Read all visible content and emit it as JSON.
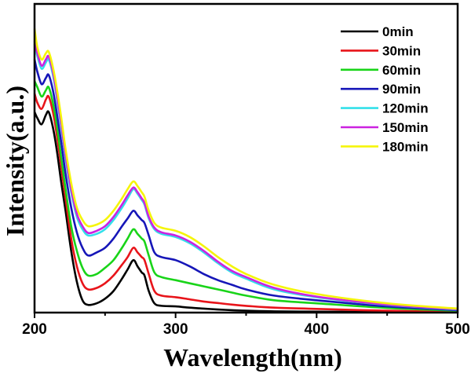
{
  "chart_data": {
    "type": "line",
    "title": "",
    "xlabel": "Wavelength(nm)",
    "ylabel": "Intensity(a.u.)",
    "xlim": [
      200,
      500
    ],
    "ylim": [
      0,
      100
    ],
    "xticks": [
      200,
      300,
      400,
      500
    ],
    "xtick_labels": [
      "200",
      "300",
      "400",
      "500"
    ],
    "yticks": [],
    "grid": false,
    "legend_position": "top-right",
    "x": [
      200,
      202,
      205,
      208,
      210,
      213,
      216,
      219,
      222,
      226,
      230,
      234,
      238,
      244,
      250,
      256,
      262,
      266,
      270,
      273,
      276,
      278,
      281,
      285,
      290,
      300,
      310,
      320,
      330,
      340,
      350,
      370,
      400,
      450,
      500
    ],
    "series": [
      {
        "name": "0min",
        "color": "#000000",
        "values": [
          65,
          63,
          61,
          64,
          65,
          60,
          52,
          42,
          33,
          20,
          10,
          4,
          2.5,
          3,
          4.5,
          7,
          11,
          14,
          17,
          15,
          13,
          12,
          7,
          3,
          2.2,
          2,
          1.6,
          1.3,
          1,
          0.8,
          0.6,
          0.4,
          0.3,
          0.2,
          0.1
        ]
      },
      {
        "name": "30min",
        "color": "#e8141a",
        "values": [
          71,
          68,
          66,
          69,
          70,
          65,
          57,
          47,
          37,
          24,
          15,
          9.5,
          7.5,
          8,
          9.5,
          12,
          15.5,
          18,
          21,
          19.5,
          18,
          17,
          12.5,
          7,
          5.5,
          5,
          4.3,
          3.6,
          3.1,
          2.6,
          2.2,
          1.6,
          1.2,
          0.6,
          0.3
        ]
      },
      {
        "name": "60min",
        "color": "#19d419",
        "values": [
          75,
          73,
          70,
          72,
          73,
          68,
          60,
          50,
          40,
          28,
          20,
          14.5,
          12,
          12.5,
          14.5,
          17,
          21,
          24,
          27,
          25.5,
          24,
          23,
          18.5,
          13,
          11.5,
          10.5,
          9.5,
          8.5,
          7.5,
          6.5,
          5.5,
          4,
          3,
          1.5,
          0.6
        ]
      },
      {
        "name": "90min",
        "color": "#1616b8",
        "values": [
          82,
          78,
          74,
          76,
          77,
          72,
          64,
          55,
          45,
          34,
          26,
          21,
          18.5,
          19.5,
          21,
          24,
          28,
          30.5,
          33,
          31.5,
          30,
          29,
          25,
          19.5,
          18,
          17,
          15,
          12.5,
          10.5,
          9,
          7.5,
          5.5,
          4,
          2,
          0.8
        ]
      },
      {
        "name": "120min",
        "color": "#33e0ea",
        "values": [
          87,
          83,
          79,
          81,
          82,
          77,
          69,
          60,
          50,
          39,
          31,
          27,
          25,
          25.5,
          27,
          30,
          34,
          37,
          40,
          38.5,
          36.5,
          35,
          30.5,
          27,
          25.5,
          24.5,
          22.5,
          19.5,
          16,
          13,
          11,
          7.5,
          5,
          2.5,
          1
        ]
      },
      {
        "name": "150min",
        "color": "#cc22e0",
        "values": [
          88,
          84,
          80,
          82,
          83,
          78,
          70,
          61,
          51,
          40,
          32,
          28,
          25.8,
          26.5,
          28,
          31,
          35,
          38,
          40.5,
          39,
          37,
          35.5,
          31,
          27.5,
          26,
          25,
          23,
          20,
          16.5,
          13.5,
          11.5,
          8,
          5.2,
          2.6,
          1.1
        ]
      },
      {
        "name": "180min",
        "color": "#f5f50a",
        "values": [
          92,
          86,
          82,
          84,
          84.5,
          79.5,
          72,
          63,
          53,
          42,
          34,
          30,
          28,
          28.5,
          30,
          33,
          37,
          40,
          42.5,
          41,
          39,
          37.5,
          33,
          29,
          27.5,
          26.5,
          24.5,
          21.5,
          18,
          15,
          12.5,
          9,
          6,
          3,
          1.3
        ]
      }
    ]
  }
}
